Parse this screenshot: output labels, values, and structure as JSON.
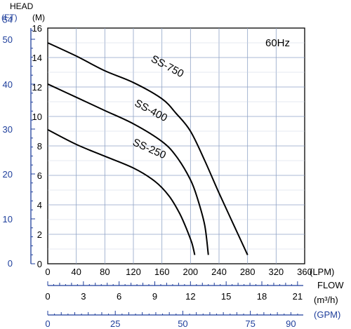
{
  "chart_data": {
    "type": "line",
    "panel_label": "60Hz",
    "x_axis": {
      "unit_label": "(LPM)",
      "range": [
        0,
        360
      ],
      "ticks": [
        "0",
        "40",
        "80",
        "120",
        "160",
        "200",
        "240",
        "280",
        "320",
        "360"
      ]
    },
    "y_axis": {
      "title": "HEAD",
      "unit_label": "(M)",
      "range": [
        0,
        16
      ],
      "ticks": [
        "0",
        "2",
        "4",
        "6",
        "8",
        "10",
        "12",
        "14",
        "16"
      ]
    },
    "y_axis_ft": {
      "unit_label": "(FT)",
      "ticks": [
        "0",
        "10",
        "20",
        "30",
        "40",
        "50",
        "54"
      ]
    },
    "flow_m3h_axis": {
      "title": "FLOW",
      "unit_label": "(m³/h)",
      "ticks": [
        "0",
        "3",
        "6",
        "9",
        "12",
        "15",
        "18",
        "21"
      ]
    },
    "flow_gpm_axis": {
      "unit_label": "(GPM)",
      "ticks": [
        "0",
        "25",
        "50",
        "75",
        "90"
      ]
    },
    "grid": true,
    "series": [
      {
        "name": "SS-750",
        "x": [
          0,
          40,
          80,
          120,
          160,
          180,
          200,
          220,
          240,
          260,
          280
        ],
        "y": [
          15.0,
          14.1,
          13.1,
          12.3,
          11.2,
          10.2,
          9.0,
          7.0,
          4.8,
          2.7,
          0.6
        ]
      },
      {
        "name": "SS-400",
        "x": [
          0,
          40,
          80,
          120,
          160,
          180,
          200,
          210,
          220,
          225
        ],
        "y": [
          12.2,
          11.3,
          10.4,
          9.5,
          8.3,
          7.3,
          5.7,
          4.4,
          2.6,
          0.6
        ]
      },
      {
        "name": "SS-250",
        "x": [
          0,
          40,
          80,
          120,
          150,
          170,
          185,
          195,
          202,
          206
        ],
        "y": [
          9.1,
          8.1,
          7.3,
          6.5,
          5.6,
          4.6,
          3.4,
          2.3,
          1.4,
          0.6
        ]
      }
    ]
  }
}
